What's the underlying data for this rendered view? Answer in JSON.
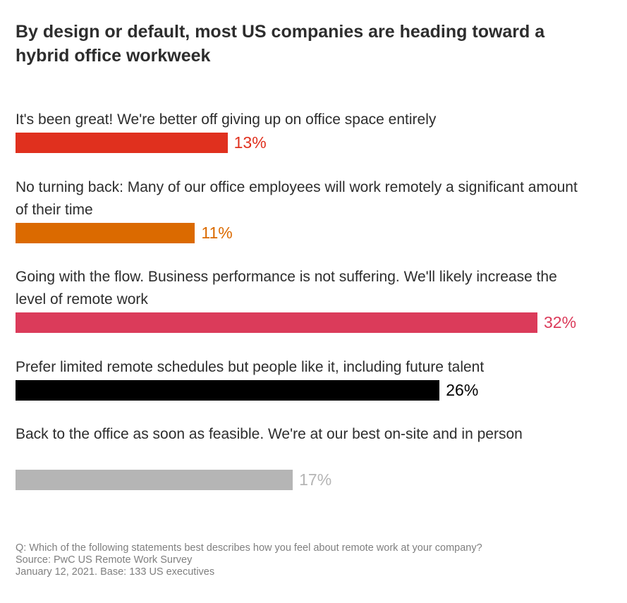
{
  "chart_data": {
    "type": "bar",
    "orientation": "horizontal",
    "title": "By design or default, most US companies are heading toward a hybrid office workweek",
    "categories": [
      "It's been great! We're better off giving up on office space entirely",
      "No turning back: Many of our office employees will work remotely a significant amount of their time",
      "Going with the flow. Business performance is not suffering. We'll likely increase the level of remote work",
      "Prefer limited remote schedules but people like it, including future talent",
      "Back to the office as soon as feasible. We're at our best on-site and in person"
    ],
    "values": [
      13,
      11,
      32,
      26,
      17
    ],
    "value_labels": [
      "13%",
      "11%",
      "32%",
      "26%",
      "17%"
    ],
    "colors": [
      "#e0301e",
      "#db6a00",
      "#db3b5a",
      "#000000",
      "#b5b5b5"
    ],
    "label_colors": [
      "#e0301e",
      "#db6a00",
      "#db3b5a",
      "#000000",
      "#b5b5b5"
    ],
    "xlim": [
      0,
      32
    ],
    "grid": false
  },
  "footnote": {
    "question": "Q: Which of the following statements best describes how you feel about remote work at your company?",
    "source": "Source: PwC US Remote Work Survey",
    "base": "January 12, 2021. Base: 133 US executives"
  }
}
